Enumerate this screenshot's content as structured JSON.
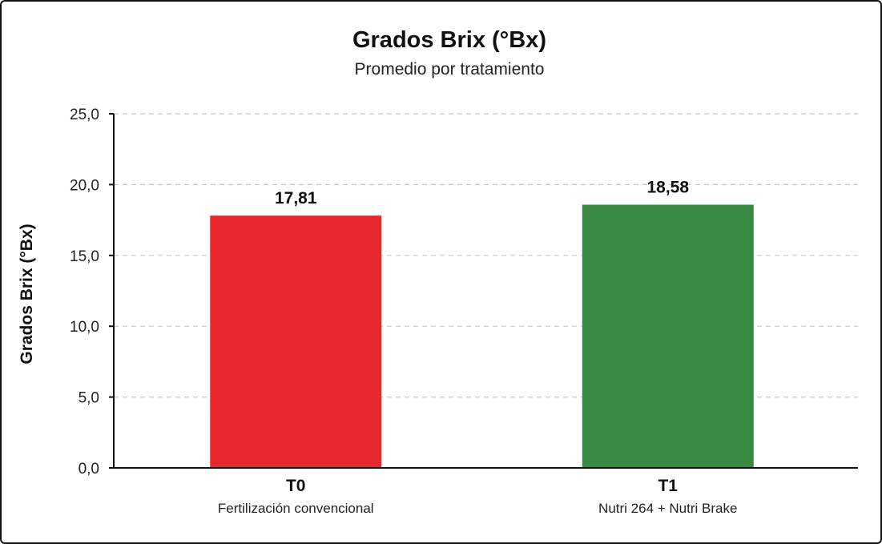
{
  "chart_data": {
    "type": "bar",
    "title": "Grados Brix (°Bx)",
    "subtitle": "Promedio por tratamiento",
    "ylabel": "Grados Brix (°Bx)",
    "xlabel": "",
    "ylim": [
      0,
      25
    ],
    "yticks": [
      0,
      5,
      10,
      15,
      20,
      25
    ],
    "ytick_labels": [
      "0,0",
      "5,0",
      "10,0",
      "15,0",
      "20,0",
      "25,0"
    ],
    "grid": true,
    "categories": [
      "T0",
      "T1"
    ],
    "category_descriptions": [
      "Fertilización convencional",
      "Nutri 264 + Nutri Brake"
    ],
    "values": [
      17.81,
      18.58
    ],
    "value_labels": [
      "17,81",
      "18,58"
    ],
    "colors": [
      "#e8282f",
      "#388a43"
    ]
  }
}
